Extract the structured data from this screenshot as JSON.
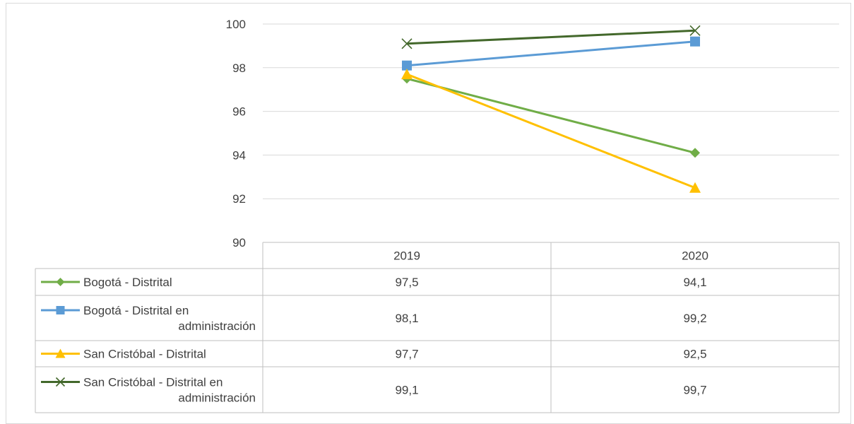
{
  "chart_data": {
    "type": "line",
    "title": "",
    "xlabel": "",
    "ylabel": "",
    "categories": [
      "2019",
      "2020"
    ],
    "ylim": [
      90,
      100
    ],
    "yticks": [
      "90",
      "92",
      "94",
      "96",
      "98",
      "100"
    ],
    "grid": true,
    "legend": "data-table-left",
    "series": [
      {
        "name": "Bogotá - Distrital",
        "name_lines": [
          "Bogotá - Distrital"
        ],
        "values": [
          97.5,
          94.1
        ],
        "labels": [
          "97,5",
          "94,1"
        ],
        "color": "#70ad47",
        "marker": "diamond"
      },
      {
        "name": "Bogotá - Distrital en administración",
        "name_lines": [
          "Bogotá - Distrital en",
          "administración"
        ],
        "values": [
          98.1,
          99.2
        ],
        "labels": [
          "98,1",
          "99,2"
        ],
        "color": "#5b9bd5",
        "marker": "square"
      },
      {
        "name": "San Cristóbal - Distrital",
        "name_lines": [
          "San Cristóbal - Distrital"
        ],
        "values": [
          97.7,
          92.5
        ],
        "labels": [
          "97,7",
          "92,5"
        ],
        "color": "#ffc000",
        "marker": "triangle"
      },
      {
        "name": "San Cristóbal - Distrital en administración",
        "name_lines": [
          "San Cristóbal - Distrital en",
          "administración"
        ],
        "values": [
          99.1,
          99.7
        ],
        "labels": [
          "99,1",
          "99,7"
        ],
        "color": "#43682b",
        "marker": "x"
      }
    ]
  }
}
